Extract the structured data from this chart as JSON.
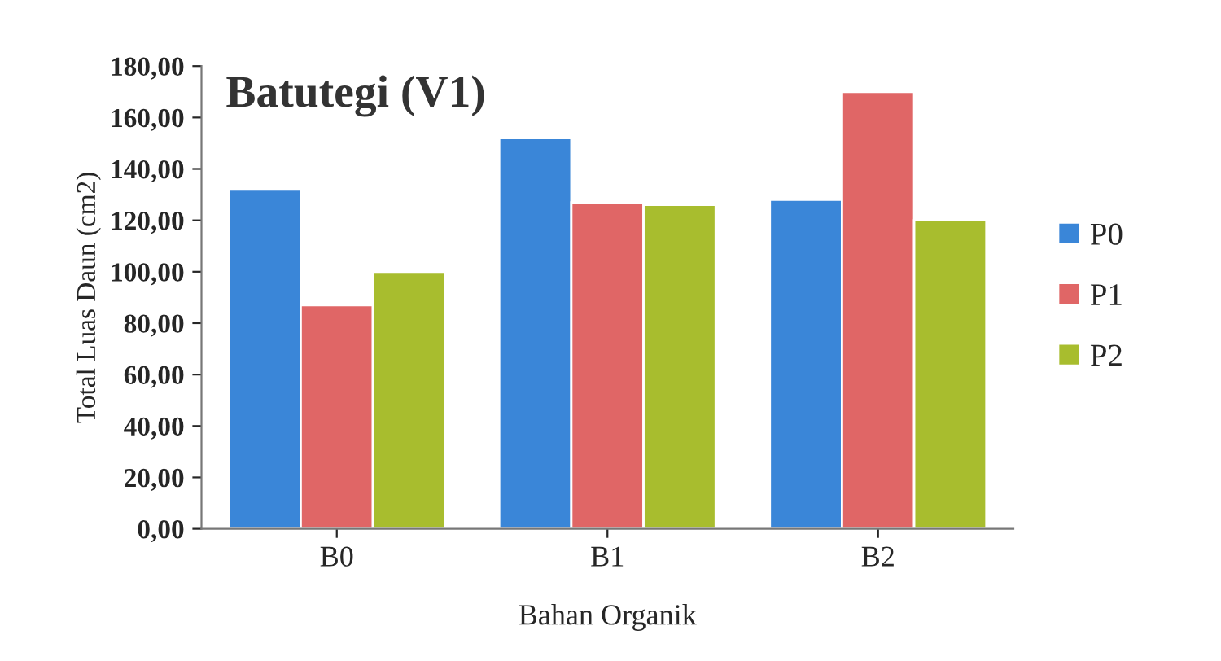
{
  "chart_data": {
    "type": "bar",
    "title": "Batutegi (V1)",
    "xlabel": "Bahan Organik",
    "ylabel": "Total Luas Daun (cm2)",
    "categories": [
      "B0",
      "B1",
      "B2"
    ],
    "series": [
      {
        "name": "P0",
        "color": "#3a86d8",
        "values": [
          132,
          152,
          128
        ]
      },
      {
        "name": "P1",
        "color": "#e06666",
        "values": [
          87,
          127,
          170
        ]
      },
      {
        "name": "P2",
        "color": "#a8bd2e",
        "values": [
          100,
          126,
          120
        ]
      }
    ],
    "ylim": [
      0,
      180
    ],
    "yticks": [
      {
        "value": 0,
        "label": "0,00"
      },
      {
        "value": 20,
        "label": "20,00"
      },
      {
        "value": 40,
        "label": "40,00"
      },
      {
        "value": 60,
        "label": "60,00"
      },
      {
        "value": 80,
        "label": "80,00"
      },
      {
        "value": 100,
        "label": "100,00"
      },
      {
        "value": 120,
        "label": "120,00"
      },
      {
        "value": 140,
        "label": "140,00"
      },
      {
        "value": 160,
        "label": "160,00"
      },
      {
        "value": 180,
        "label": "180,00"
      }
    ],
    "grid": false,
    "legend": "right"
  }
}
